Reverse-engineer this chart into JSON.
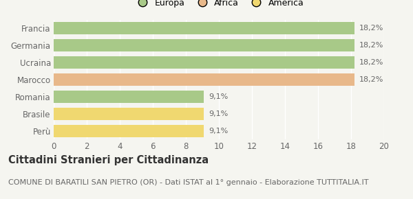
{
  "categories": [
    "Francia",
    "Germania",
    "Ucraina",
    "Marocco",
    "Romania",
    "Brasile",
    "Perù"
  ],
  "values": [
    18.2,
    18.2,
    18.2,
    18.2,
    9.1,
    9.1,
    9.1
  ],
  "bar_colors": [
    "#a8c988",
    "#a8c988",
    "#a8c988",
    "#e8b88a",
    "#a8c988",
    "#f0d870",
    "#f0d870"
  ],
  "label_texts": [
    "18,2%",
    "18,2%",
    "18,2%",
    "18,2%",
    "9,1%",
    "9,1%",
    "9,1%"
  ],
  "legend_labels": [
    "Europa",
    "Africa",
    "America"
  ],
  "legend_colors": [
    "#a8c988",
    "#e8b88a",
    "#f0d870"
  ],
  "xlim": [
    0,
    20
  ],
  "xticks": [
    0,
    2,
    4,
    6,
    8,
    10,
    12,
    14,
    16,
    18,
    20
  ],
  "title": "Cittadini Stranieri per Cittadinanza",
  "subtitle": "COMUNE DI BARATILI SAN PIETRO (OR) - Dati ISTAT al 1° gennaio - Elaborazione TUTTITALIA.IT",
  "background_color": "#f5f5f0",
  "grid_color": "#ffffff",
  "bar_height": 0.72,
  "label_fontsize": 8.0,
  "tick_fontsize": 8.5,
  "title_fontsize": 10.5,
  "subtitle_fontsize": 8.0,
  "legend_fontsize": 9.0
}
